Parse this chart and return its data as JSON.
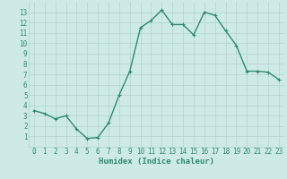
{
  "x": [
    0,
    1,
    2,
    3,
    4,
    5,
    6,
    7,
    8,
    9,
    10,
    11,
    12,
    13,
    14,
    15,
    16,
    17,
    18,
    19,
    20,
    21,
    22,
    23
  ],
  "y": [
    3.5,
    3.2,
    2.7,
    3.0,
    1.7,
    0.8,
    0.9,
    2.3,
    5.0,
    7.3,
    11.5,
    12.2,
    13.2,
    11.8,
    11.8,
    10.8,
    13.0,
    12.7,
    11.2,
    9.8,
    7.3,
    7.3,
    7.2,
    6.5
  ],
  "line_color": "#2e8b6e",
  "marker": "+",
  "marker_size": 3,
  "line_width": 1.0,
  "bg_color": "#ceeae7",
  "grid_color": "#afd4d0",
  "xlabel": "Humidex (Indice chaleur)",
  "xlim": [
    -0.5,
    23.5
  ],
  "ylim": [
    0,
    14
  ],
  "yticks": [
    1,
    2,
    3,
    4,
    5,
    6,
    7,
    8,
    9,
    10,
    11,
    12,
    13
  ],
  "xticks": [
    0,
    1,
    2,
    3,
    4,
    5,
    6,
    7,
    8,
    9,
    10,
    11,
    12,
    13,
    14,
    15,
    16,
    17,
    18,
    19,
    20,
    21,
    22,
    23
  ],
  "label_fontsize": 6.5,
  "tick_fontsize": 5.5
}
